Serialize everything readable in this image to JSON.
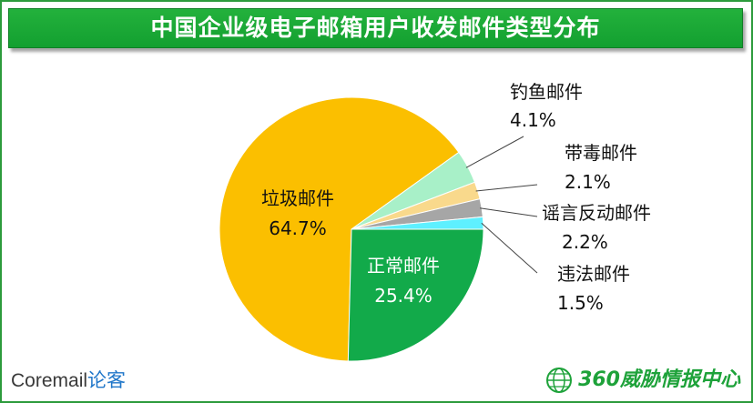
{
  "title": "中国企业级电子邮箱用户收发邮件类型分布",
  "chart_data": {
    "type": "pie",
    "title": "中国企业级电子邮箱用户收发邮件类型分布",
    "unit": "%",
    "slices": [
      {
        "name": "垃圾邮件",
        "value": 64.7,
        "label": "64.7%",
        "color": "#fbbf00"
      },
      {
        "name": "钓鱼邮件",
        "value": 4.1,
        "label": "4.1%",
        "color": "#a8f0c8"
      },
      {
        "name": "带毒邮件",
        "value": 2.1,
        "label": "2.1%",
        "color": "#f9d98c"
      },
      {
        "name": "谣言反动邮件",
        "value": 2.2,
        "label": "2.2%",
        "color": "#a6a6a6"
      },
      {
        "name": "违法邮件",
        "value": 1.5,
        "label": "1.5%",
        "color": "#5ef0ff"
      },
      {
        "name": "正常邮件",
        "value": 25.4,
        "label": "25.4%",
        "color": "#12aa4a"
      }
    ],
    "label_positions": [
      "inside",
      "outside",
      "outside",
      "outside",
      "outside",
      "inside"
    ]
  },
  "footer": {
    "left_brand_main": "Coremail",
    "left_brand_accent": "论客",
    "right_brand": "360威胁情报中心"
  }
}
